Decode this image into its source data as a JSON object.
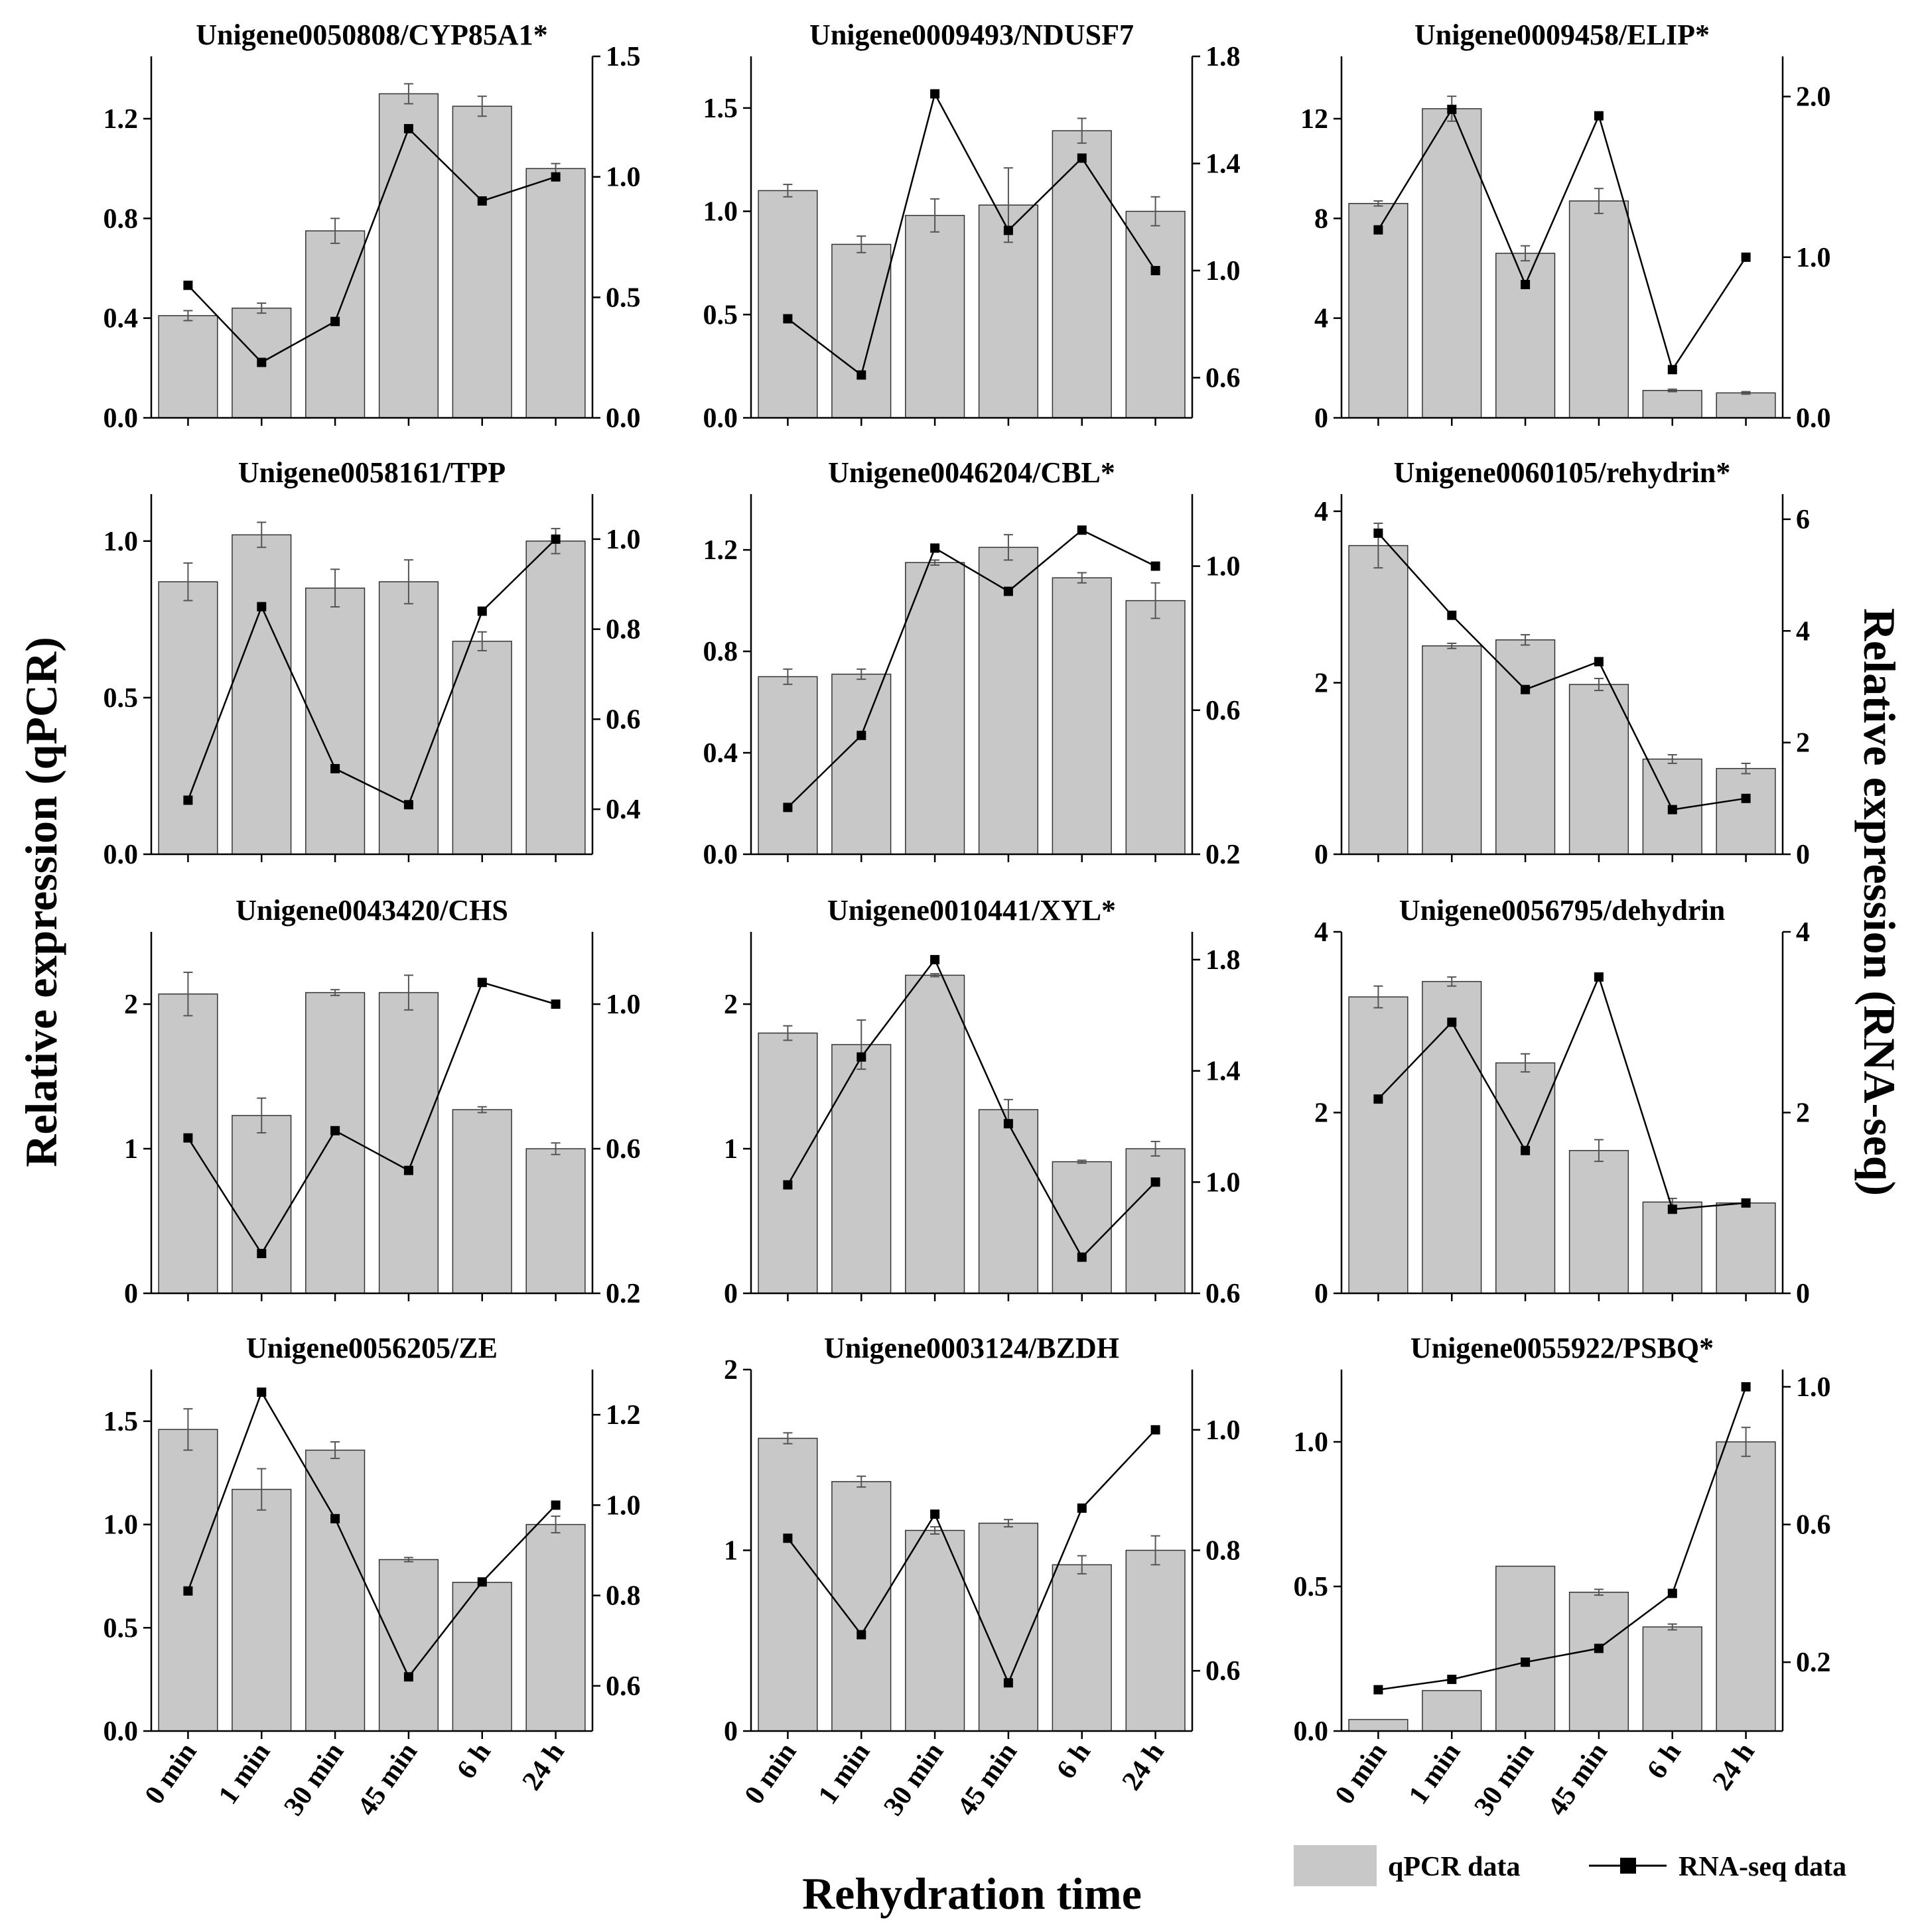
{
  "figure": {
    "y_left_label": "Relative expression (qPCR)",
    "y_right_label": "Relative expression (RNA-seq)",
    "x_label": "Rehydration time",
    "legend": {
      "bar": "qPCR data",
      "line": "RNA-seq data"
    },
    "colors": {
      "bar_fill": "#c8c8c8",
      "line": "#000000"
    }
  },
  "chart_data": [
    {
      "type": "bar+line",
      "title": "Unigene0050808/CYP85A1*",
      "categories": [
        "0 min",
        "1 min",
        "30 min",
        "45 min",
        "6 h",
        "24 h"
      ],
      "left": {
        "min": 0,
        "max": 1.45,
        "ticks": [
          "0.0",
          "0.4",
          "0.8",
          "1.2"
        ]
      },
      "right": {
        "min": 0,
        "max": 1.5,
        "ticks": [
          "0.0",
          "0.5",
          "1.0",
          "1.5"
        ]
      },
      "bars": [
        0.41,
        0.44,
        0.75,
        1.3,
        1.25,
        1.0
      ],
      "errors": [
        0.02,
        0.02,
        0.05,
        0.04,
        0.04,
        0.02
      ],
      "line": [
        0.55,
        0.23,
        0.4,
        1.2,
        0.9,
        1.0
      ]
    },
    {
      "type": "bar+line",
      "title": "Unigene0009493/NDUSF7",
      "categories": [
        "0 min",
        "1 min",
        "30 min",
        "45 min",
        "6 h",
        "24 h"
      ],
      "left": {
        "min": 0,
        "max": 1.75,
        "ticks": [
          "0.0",
          "0.5",
          "1.0",
          "1.5"
        ]
      },
      "right": {
        "min": 0.45,
        "max": 1.8,
        "ticks": [
          "0.6",
          "1.0",
          "1.4",
          "1.8"
        ]
      },
      "bars": [
        1.1,
        0.84,
        0.98,
        1.03,
        1.39,
        1.0
      ],
      "errors": [
        0.03,
        0.04,
        0.08,
        0.18,
        0.06,
        0.07
      ],
      "line": [
        0.82,
        0.61,
        1.66,
        1.15,
        1.42,
        1.0
      ]
    },
    {
      "type": "bar+line",
      "title": "Unigene0009458/ELIP*",
      "categories": [
        "0 min",
        "1 min",
        "30 min",
        "45 min",
        "6 h",
        "24 h"
      ],
      "left": {
        "min": 0,
        "max": 14.5,
        "ticks": [
          "0",
          "4",
          "8",
          "12"
        ]
      },
      "right": {
        "min": 0,
        "max": 2.25,
        "ticks": [
          "0.0",
          "1.0",
          "2.0"
        ]
      },
      "bars": [
        8.6,
        12.4,
        6.6,
        8.7,
        1.1,
        1.0
      ],
      "errors": [
        0.1,
        0.5,
        0.3,
        0.5,
        0.05,
        0.05
      ],
      "line": [
        1.17,
        1.92,
        0.83,
        1.88,
        0.3,
        1.0
      ]
    },
    {
      "type": "bar+line",
      "title": "Unigene0058161/TPP",
      "categories": [
        "0 min",
        "1 min",
        "30 min",
        "45 min",
        "6 h",
        "24 h"
      ],
      "left": {
        "min": 0,
        "max": 1.15,
        "ticks": [
          "0.0",
          "0.5",
          "1.0"
        ]
      },
      "right": {
        "min": 0.3,
        "max": 1.1,
        "ticks": [
          "0.4",
          "0.6",
          "0.8",
          "1.0"
        ]
      },
      "bars": [
        0.87,
        1.02,
        0.85,
        0.87,
        0.68,
        1.0
      ],
      "errors": [
        0.06,
        0.04,
        0.06,
        0.07,
        0.03,
        0.04
      ],
      "line": [
        0.42,
        0.85,
        0.49,
        0.41,
        0.84,
        1.0
      ]
    },
    {
      "type": "bar+line",
      "title": "Unigene0046204/CBL*",
      "categories": [
        "0 min",
        "1 min",
        "30 min",
        "45 min",
        "6 h",
        "24 h"
      ],
      "left": {
        "min": 0,
        "max": 1.42,
        "ticks": [
          "0.0",
          "0.4",
          "0.8",
          "1.2"
        ]
      },
      "right": {
        "min": 0.2,
        "max": 1.2,
        "ticks": [
          "0.2",
          "0.6",
          "1.0"
        ]
      },
      "bars": [
        0.7,
        0.71,
        1.15,
        1.21,
        1.09,
        1.0
      ],
      "errors": [
        0.03,
        0.02,
        0.01,
        0.05,
        0.02,
        0.07
      ],
      "line": [
        0.33,
        0.53,
        1.05,
        0.93,
        1.1,
        1.0
      ]
    },
    {
      "type": "bar+line",
      "title": "Unigene0060105/rehydrin*",
      "categories": [
        "0 min",
        "1 min",
        "30 min",
        "45 min",
        "6 h",
        "24 h"
      ],
      "left": {
        "min": 0,
        "max": 4.2,
        "ticks": [
          "0",
          "2",
          "4"
        ]
      },
      "right": {
        "min": 0,
        "max": 6.45,
        "ticks": [
          "0",
          "2",
          "4",
          "6"
        ]
      },
      "bars": [
        3.6,
        2.43,
        2.5,
        1.98,
        1.11,
        1.0
      ],
      "errors": [
        0.26,
        0.03,
        0.06,
        0.07,
        0.05,
        0.06
      ],
      "line": [
        5.75,
        4.28,
        2.95,
        3.45,
        0.8,
        1.0
      ]
    },
    {
      "type": "bar+line",
      "title": "Unigene0043420/CHS",
      "categories": [
        "0 min",
        "1 min",
        "30 min",
        "45 min",
        "6 h",
        "24 h"
      ],
      "left": {
        "min": 0,
        "max": 2.5,
        "ticks": [
          "0",
          "1",
          "2"
        ]
      },
      "right": {
        "min": 0.2,
        "max": 1.2,
        "ticks": [
          "0.2",
          "0.6",
          "1.0"
        ]
      },
      "bars": [
        2.07,
        1.23,
        2.08,
        2.08,
        1.27,
        1.0
      ],
      "errors": [
        0.15,
        0.12,
        0.02,
        0.12,
        0.02,
        0.04
      ],
      "line": [
        0.63,
        0.31,
        0.65,
        0.54,
        1.06,
        1.0
      ]
    },
    {
      "type": "bar+line",
      "title": "Unigene0010441/XYL*",
      "categories": [
        "0 min",
        "1 min",
        "30 min",
        "45 min",
        "6 h",
        "24 h"
      ],
      "left": {
        "min": 0,
        "max": 2.5,
        "ticks": [
          "0",
          "1",
          "2"
        ]
      },
      "right": {
        "min": 0.6,
        "max": 1.9,
        "ticks": [
          "0.6",
          "1.0",
          "1.4",
          "1.8"
        ]
      },
      "bars": [
        1.8,
        1.72,
        2.2,
        1.27,
        0.91,
        1.0
      ],
      "errors": [
        0.05,
        0.17,
        0.01,
        0.07,
        0.01,
        0.05
      ],
      "line": [
        0.99,
        1.45,
        1.8,
        1.21,
        0.73,
        1.0
      ]
    },
    {
      "type": "bar+line",
      "title": "Unigene0056795/dehydrin",
      "categories": [
        "0 min",
        "1 min",
        "30 min",
        "45 min",
        "6 h",
        "24 h"
      ],
      "left": {
        "min": 0,
        "max": 4.0,
        "ticks": [
          "0",
          "2",
          "4"
        ]
      },
      "right": {
        "min": 0,
        "max": 4.0,
        "ticks": [
          "0",
          "2",
          "4"
        ]
      },
      "bars": [
        3.28,
        3.45,
        2.55,
        1.58,
        1.01,
        1.0
      ],
      "errors": [
        0.12,
        0.05,
        0.1,
        0.12,
        0.04,
        0.04
      ],
      "line": [
        2.15,
        3.0,
        1.58,
        3.5,
        0.93,
        1.0
      ]
    },
    {
      "type": "bar+line",
      "title": "Unigene0056205/ZE",
      "categories": [
        "0 min",
        "1 min",
        "30 min",
        "45 min",
        "6 h",
        "24 h"
      ],
      "left": {
        "min": 0,
        "max": 1.75,
        "ticks": [
          "0.0",
          "0.5",
          "1.0",
          "1.5"
        ]
      },
      "right": {
        "min": 0.5,
        "max": 1.3,
        "ticks": [
          "0.6",
          "0.8",
          "1.0",
          "1.2"
        ]
      },
      "bars": [
        1.46,
        1.17,
        1.36,
        0.83,
        0.72,
        1.0
      ],
      "errors": [
        0.1,
        0.1,
        0.04,
        0.01,
        0.01,
        0.04
      ],
      "line": [
        0.81,
        1.25,
        0.97,
        0.62,
        0.83,
        1.0
      ]
    },
    {
      "type": "bar+line",
      "title": "Unigene0003124/BZDH",
      "categories": [
        "0 min",
        "1 min",
        "30 min",
        "45 min",
        "6 h",
        "24 h"
      ],
      "left": {
        "min": 0,
        "max": 2.0,
        "ticks": [
          "0",
          "1",
          "2"
        ]
      },
      "right": {
        "min": 0.5,
        "max": 1.1,
        "ticks": [
          "0.6",
          "0.8",
          "1.0"
        ]
      },
      "bars": [
        1.62,
        1.38,
        1.11,
        1.15,
        0.92,
        1.0
      ],
      "errors": [
        0.03,
        0.03,
        0.02,
        0.02,
        0.05,
        0.08
      ],
      "line": [
        0.82,
        0.66,
        0.86,
        0.58,
        0.87,
        1.0
      ]
    },
    {
      "type": "bar+line",
      "title": "Unigene0055922/PSBQ*",
      "categories": [
        "0 min",
        "1 min",
        "30 min",
        "45 min",
        "6 h",
        "24 h"
      ],
      "left": {
        "min": 0,
        "max": 1.25,
        "ticks": [
          "0.0",
          "0.5",
          "1.0"
        ]
      },
      "right": {
        "min": 0,
        "max": 1.05,
        "ticks": [
          "0.2",
          "0.6",
          "1.0"
        ]
      },
      "bars": [
        0.04,
        0.14,
        0.57,
        0.48,
        0.36,
        1.0
      ],
      "errors": [
        0.0,
        0.0,
        0.0,
        0.01,
        0.01,
        0.05
      ],
      "line": [
        0.12,
        0.15,
        0.2,
        0.24,
        0.4,
        1.0
      ]
    }
  ]
}
